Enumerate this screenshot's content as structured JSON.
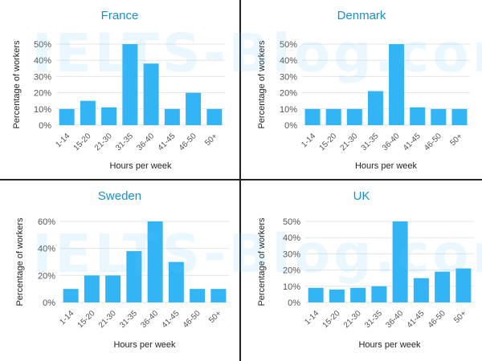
{
  "watermark": "IELTS-Blog.com",
  "colors": {
    "bar": "#33b5f5",
    "title": "#1a8fcf",
    "axis_text": "#555555",
    "grid": "#e6e6e6",
    "border": "#222222"
  },
  "chart_data": [
    {
      "type": "bar",
      "title": "France",
      "xlabel": "Hours per week",
      "ylabel": "Percentage of workers",
      "categories": [
        "1-14",
        "15-20",
        "21-30",
        "31-35",
        "36-40",
        "41-45",
        "46-50",
        "50+"
      ],
      "values": [
        10,
        15,
        11,
        50,
        38,
        10,
        20,
        10
      ],
      "ylim": [
        0,
        50
      ],
      "yticks": [
        "0%",
        "10%",
        "20%",
        "30%",
        "40%",
        "50%"
      ],
      "ytick_values": [
        0,
        10,
        20,
        30,
        40,
        50
      ],
      "grid": true
    },
    {
      "type": "bar",
      "title": "Denmark",
      "xlabel": "Hours per week",
      "ylabel": "Percentage of workers",
      "categories": [
        "1-14",
        "15-20",
        "21-30",
        "31-35",
        "36-40",
        "41-45",
        "46-50",
        "50+"
      ],
      "values": [
        10,
        10,
        10,
        21,
        50,
        11,
        10,
        10
      ],
      "ylim": [
        0,
        50
      ],
      "yticks": [
        "0%",
        "10%",
        "20%",
        "30%",
        "40%",
        "50%"
      ],
      "ytick_values": [
        0,
        10,
        20,
        30,
        40,
        50
      ],
      "grid": true
    },
    {
      "type": "bar",
      "title": "Sweden",
      "xlabel": "Hours per week",
      "ylabel": "Percentage of workers",
      "categories": [
        "1-14",
        "15-20",
        "21-30",
        "31-35",
        "36-40",
        "41-45",
        "46-50",
        "50+"
      ],
      "values": [
        10,
        20,
        20,
        38,
        60,
        30,
        10,
        10
      ],
      "ylim": [
        0,
        60
      ],
      "yticks": [
        "0%",
        "20%",
        "40%",
        "60%"
      ],
      "ytick_values": [
        0,
        20,
        40,
        60
      ],
      "grid": true
    },
    {
      "type": "bar",
      "title": "UK",
      "xlabel": "Hours per week",
      "ylabel": "Percentage of workers",
      "categories": [
        "1-14",
        "15-20",
        "21-30",
        "31-35",
        "36-40",
        "41-45",
        "46-50",
        "50+"
      ],
      "values": [
        9,
        8,
        9,
        10,
        50,
        15,
        19,
        21
      ],
      "ylim": [
        0,
        50
      ],
      "yticks": [
        "0%",
        "10%",
        "20%",
        "30%",
        "40%",
        "50%"
      ],
      "ytick_values": [
        0,
        10,
        20,
        30,
        40,
        50
      ],
      "grid": true
    }
  ]
}
